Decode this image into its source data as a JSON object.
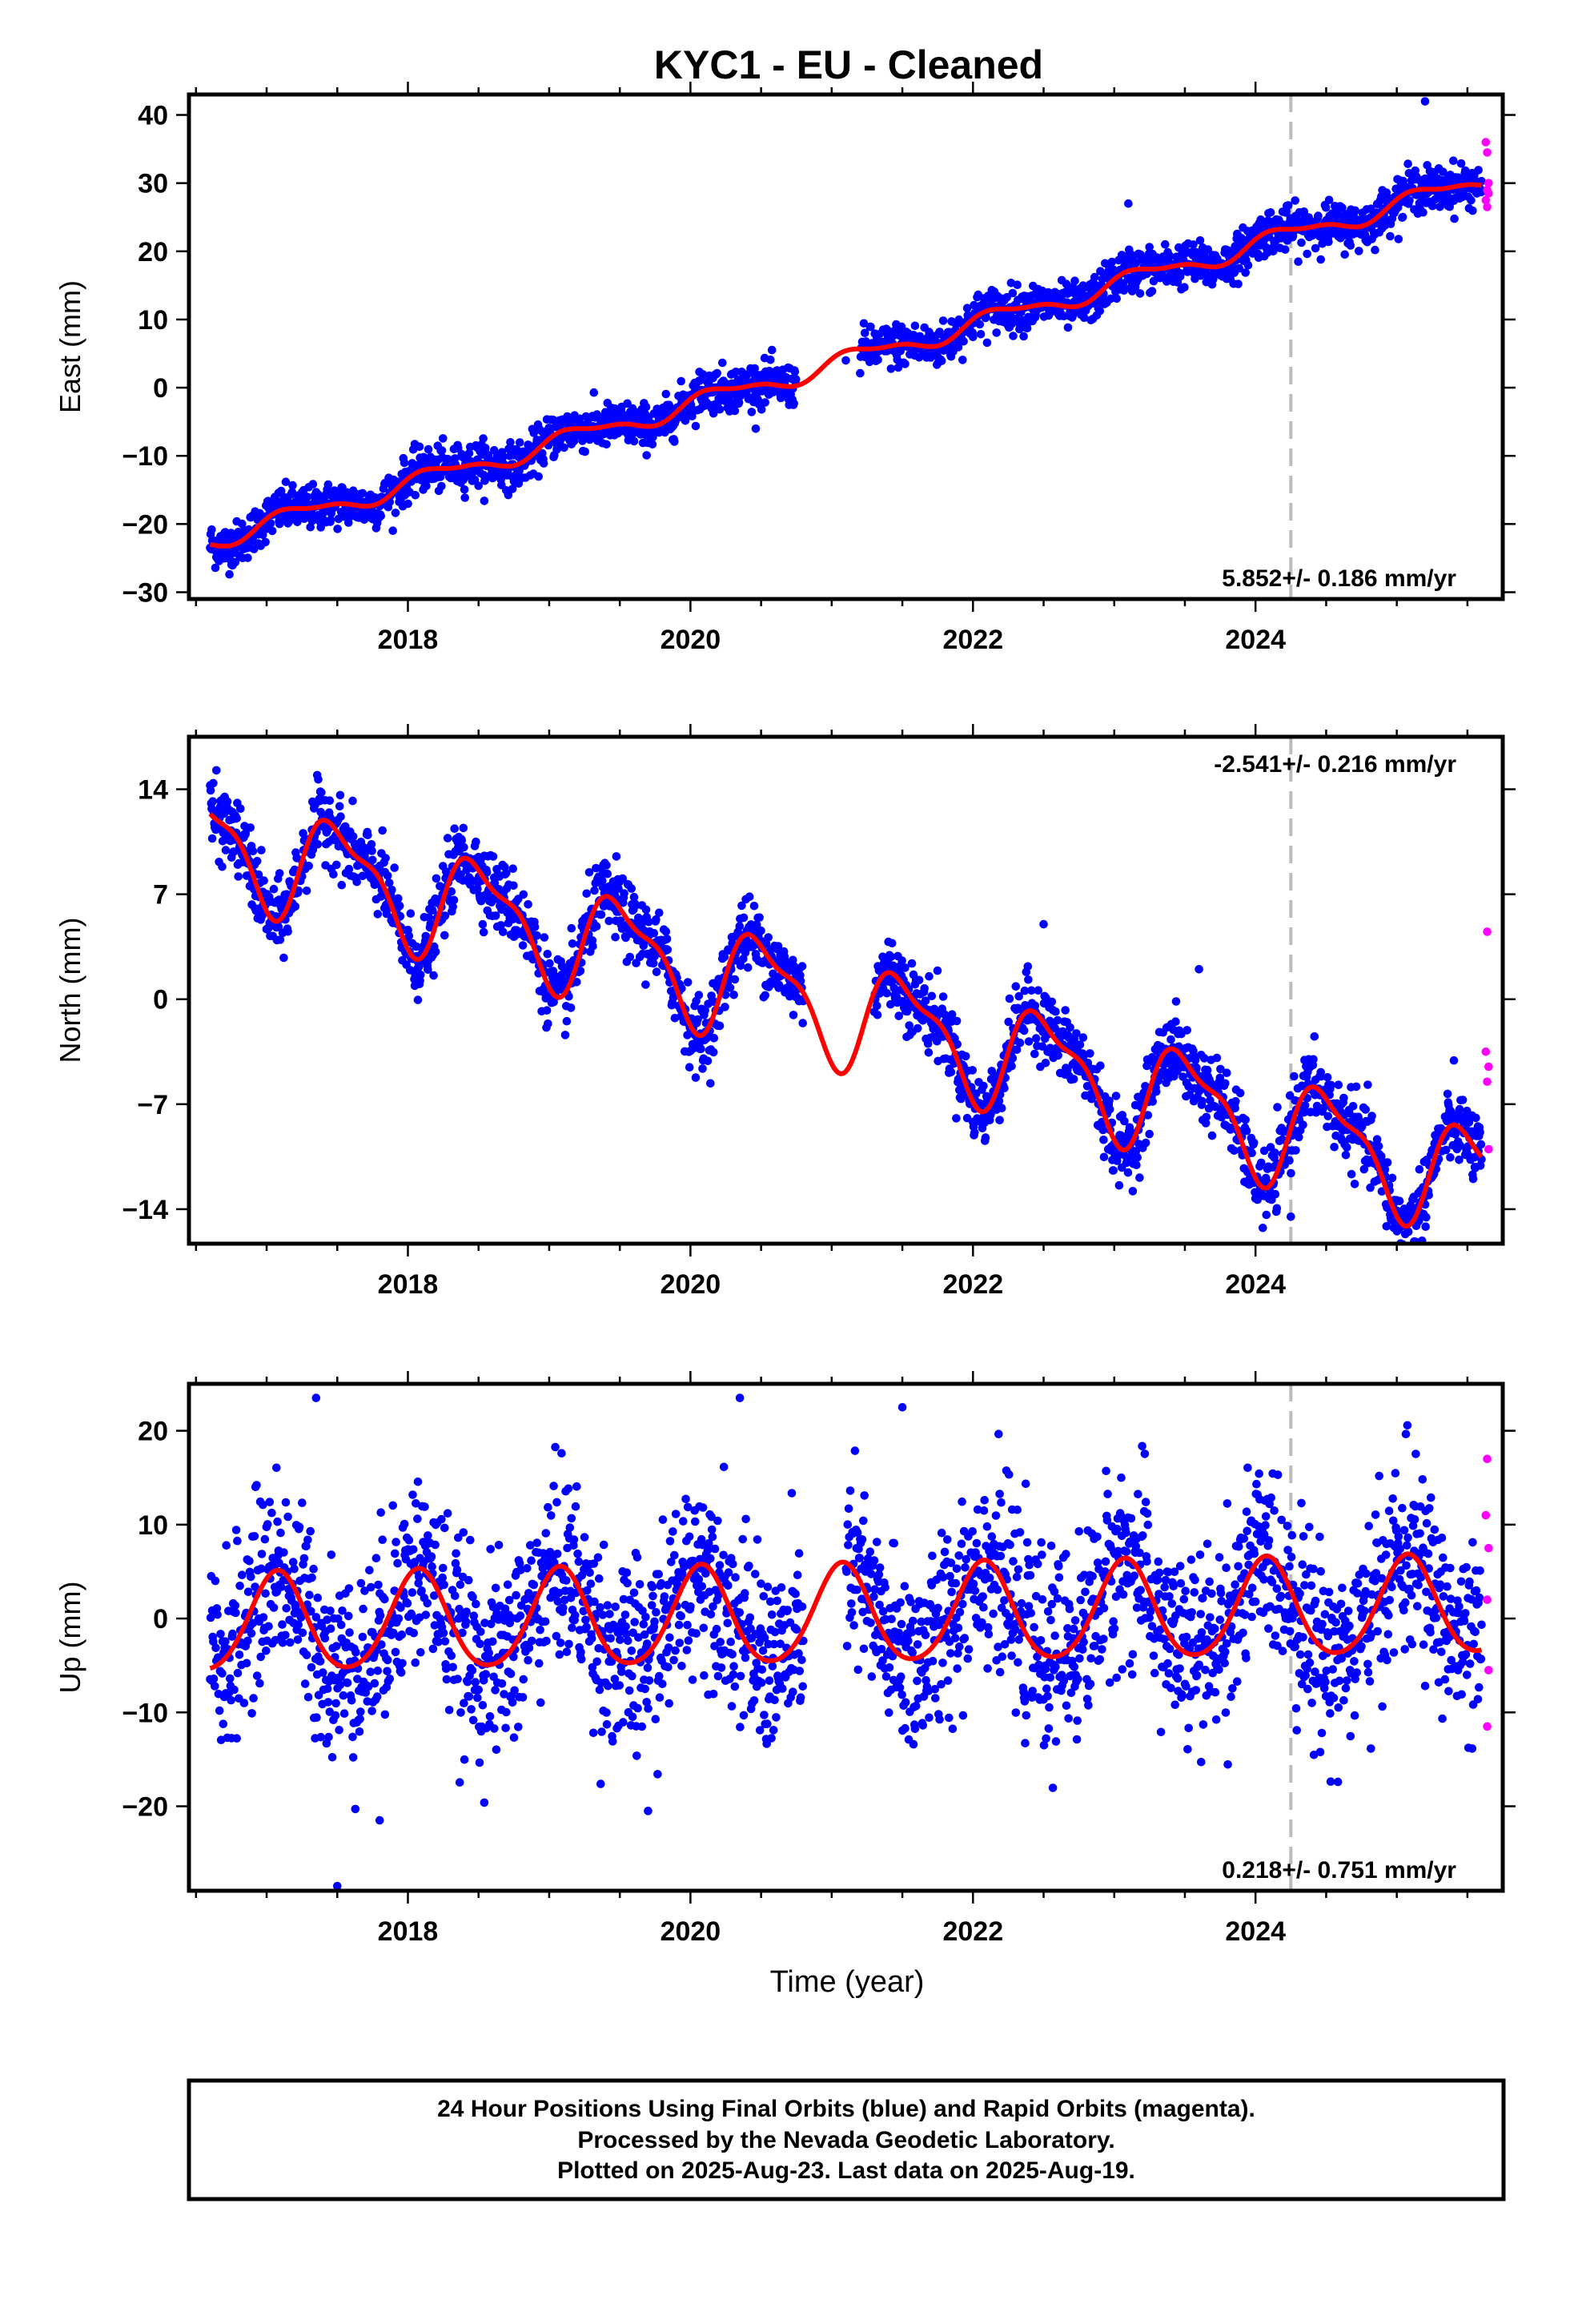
{
  "title": "KYC1  - EU - Cleaned",
  "xlabel": "Time (year)",
  "footer": {
    "line1": "24 Hour Positions Using Final Orbits (blue) and Rapid Orbits (magenta).",
    "line2": "Processed by the Nevada Geodetic Laboratory.",
    "line3": "Plotted on 2025-Aug-23. Last data on 2025-Aug-19."
  },
  "colors": {
    "final_orbits": "#0000ff",
    "rapid_orbits": "#ff00ff",
    "model_fit": "#ff0000",
    "event_line": "#bbbbbb"
  },
  "chart_data": [
    {
      "type": "scatter",
      "id": "east",
      "ylabel": "East (mm)",
      "rate_label": "5.852+/- 0.186 mm/yr",
      "rate_position": "bottom-right",
      "xlim": [
        2016.45,
        2025.75
      ],
      "ylim": [
        -31,
        43
      ],
      "xticks": [
        2018,
        2020,
        2022,
        2024
      ],
      "xtick_labels": [
        "2018",
        "2020",
        "2022",
        "2024"
      ],
      "yticks": [
        -30,
        -20,
        -10,
        0,
        10,
        20,
        30,
        40
      ],
      "ytick_labels": [
        "−30",
        "−20",
        "−10",
        "0",
        "10",
        "20",
        "30",
        "40"
      ],
      "event_line_x": 2024.25,
      "data_start": 2016.6,
      "data_end": 2025.6,
      "gap": [
        2020.75,
        2021.2
      ],
      "fit": {
        "offset": 3.4,
        "trend": 5.852,
        "t0": 2021.0,
        "amp": 1.3,
        "phase": 0.3,
        "amp2": 0.5,
        "phase2": 1.0
      },
      "scatter_sd": 1.6,
      "outliers": [
        [
          2025.2,
          42
        ],
        [
          2023.1,
          27
        ],
        [
          2021.1,
          4
        ]
      ],
      "rapid_points": [
        [
          2025.63,
          36
        ],
        [
          2025.64,
          34.5
        ],
        [
          2025.65,
          30
        ],
        [
          2025.64,
          29
        ],
        [
          2025.65,
          28.5
        ],
        [
          2025.63,
          27.5
        ],
        [
          2025.64,
          26.5
        ]
      ],
      "legend": []
    },
    {
      "type": "scatter",
      "id": "north",
      "ylabel": "North (mm)",
      "rate_label": "-2.541+/- 0.216 mm/yr",
      "rate_position": "top-right",
      "xlim": [
        2016.45,
        2025.75
      ],
      "ylim": [
        -16.3,
        17.5
      ],
      "xticks": [
        2018,
        2020,
        2022,
        2024
      ],
      "xtick_labels": [
        "2018",
        "2020",
        "2022",
        "2024"
      ],
      "yticks": [
        -14,
        -7,
        0,
        7,
        14
      ],
      "ytick_labels": [
        "−14",
        "−7",
        "0",
        "7",
        "14"
      ],
      "event_line_x": 2024.25,
      "data_start": 2016.6,
      "data_end": 2025.6,
      "gap": [
        2020.8,
        2021.3
      ],
      "fit": {
        "offset": -0.5,
        "trend": -2.541,
        "t0": 2021.0,
        "amp": 3.3,
        "phase": 4.6,
        "amp2": 1.2,
        "phase2": 3.6
      },
      "scatter_sd": 1.2,
      "outliers": [
        [
          2022.5,
          5
        ],
        [
          2023.6,
          2
        ],
        [
          2024.25,
          -14.5
        ]
      ],
      "rapid_points": [
        [
          2025.64,
          4.5
        ],
        [
          2025.63,
          -3.5
        ],
        [
          2025.65,
          -4.5
        ],
        [
          2025.64,
          -5.5
        ],
        [
          2025.65,
          -10
        ]
      ],
      "legend": []
    },
    {
      "type": "scatter",
      "id": "up",
      "ylabel": "Up (mm)",
      "rate_label": "0.218+/- 0.751 mm/yr",
      "rate_position": "bottom-right",
      "xlim": [
        2016.45,
        2025.75
      ],
      "ylim": [
        -29,
        25
      ],
      "xticks": [
        2018,
        2020,
        2022,
        2024
      ],
      "xtick_labels": [
        "2018",
        "2020",
        "2022",
        "2024"
      ],
      "yticks": [
        -20,
        -10,
        0,
        10,
        20
      ],
      "ytick_labels": [
        "−20",
        "−10",
        "0",
        "10",
        "20"
      ],
      "event_line_x": 2024.25,
      "data_start": 2016.6,
      "data_end": 2025.6,
      "gap": [
        2020.8,
        2021.1
      ],
      "fit": {
        "offset": 0.2,
        "trend": 0.218,
        "t0": 2021.0,
        "amp": 5.2,
        "phase": 1.1,
        "amp2": 0.6,
        "phase2": 0.5
      },
      "scatter_sd": 5.0,
      "outliers": [
        [
          2017.35,
          23.5
        ],
        [
          2020.35,
          23.5
        ],
        [
          2021.5,
          22.5
        ],
        [
          2017.5,
          -28.5
        ],
        [
          2017.8,
          -21.5
        ],
        [
          2019.7,
          -20.5
        ]
      ],
      "rapid_points": [
        [
          2025.64,
          17
        ],
        [
          2025.63,
          11
        ],
        [
          2025.65,
          7.5
        ],
        [
          2025.64,
          2
        ],
        [
          2025.65,
          -5.5
        ],
        [
          2025.64,
          -11.5
        ]
      ],
      "legend": []
    }
  ]
}
